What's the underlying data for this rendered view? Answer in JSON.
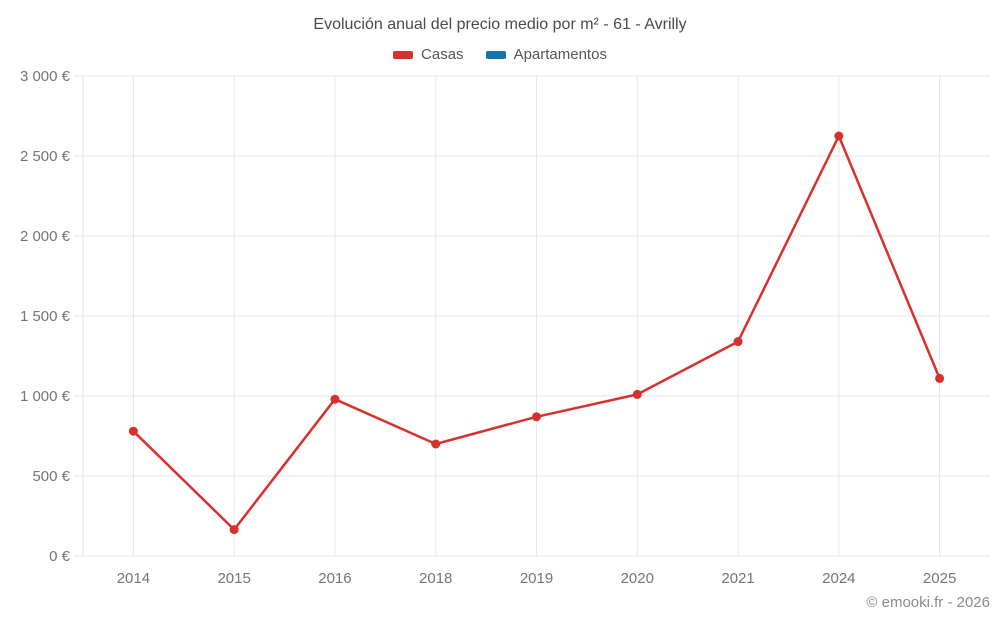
{
  "header": {
    "title": "Evolución anual del precio medio por m² - 61 - Avrilly"
  },
  "legend": [
    {
      "label": "Casas",
      "color": "#d7312e"
    },
    {
      "label": "Apartamentos",
      "color": "#1673a8"
    }
  ],
  "footer": {
    "credit": "© emooki.fr - 2026"
  },
  "colors": {
    "background": "#ffffff",
    "grid": "#e6e6e6",
    "axis_text": "#757575",
    "title_text": "#4a4a4a",
    "footer_text": "#8a8a8a",
    "casas": "#d7312e",
    "apartamentos": "#1673a8"
  },
  "chart_data": {
    "type": "line",
    "title": "Evolución anual del precio medio por m² - 61 - Avrilly",
    "categories": [
      "2014",
      "2015",
      "2016",
      "2018",
      "2019",
      "2020",
      "2021",
      "2024",
      "2025"
    ],
    "series": [
      {
        "name": "Casas",
        "color": "#d7312e",
        "values": [
          780,
          165,
          980,
          700,
          870,
          1010,
          1340,
          2625,
          1110
        ]
      },
      {
        "name": "Apartamentos",
        "color": "#1673a8",
        "values": [
          null,
          null,
          null,
          null,
          null,
          null,
          null,
          null,
          null
        ]
      }
    ],
    "xlabel": "",
    "ylabel": "",
    "ylim": [
      0,
      3000
    ],
    "ytick_values": [
      0,
      500,
      1000,
      1500,
      2000,
      2500,
      3000
    ],
    "ytick_labels": [
      "0 €",
      "500 €",
      "1 000 €",
      "1 500 €",
      "2 000 €",
      "2 500 €",
      "3 000 €"
    ],
    "grid": true,
    "legend_position": "top",
    "marker": "circle"
  }
}
